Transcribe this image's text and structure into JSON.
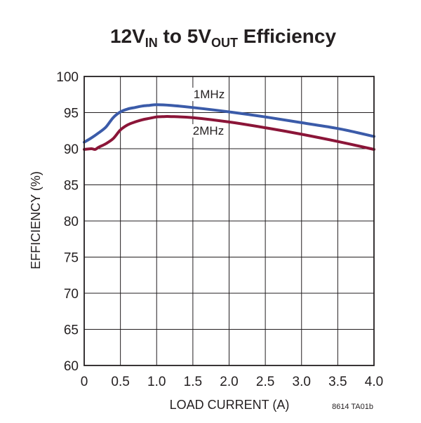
{
  "chart_data": {
    "type": "line",
    "title": {
      "prefix": "12V",
      "sub1": "IN",
      "middle": " to 5V",
      "sub2": "OUT",
      "suffix": " Efficiency"
    },
    "xlabel": "LOAD CURRENT (A)",
    "ylabel": "EFFICIENCY (%)",
    "xlim": [
      0,
      4.0
    ],
    "ylim": [
      60,
      100
    ],
    "xticks": [
      "0",
      "0.5",
      "1.0",
      "1.5",
      "2.0",
      "2.5",
      "3.0",
      "3.5",
      "4.0"
    ],
    "yticks": [
      "60",
      "65",
      "70",
      "75",
      "80",
      "85",
      "90",
      "95",
      "100"
    ],
    "grid": true,
    "figure_code": "8614 TA01b",
    "series": [
      {
        "name": "1MHz",
        "color": "#3b5ba9",
        "x": [
          0,
          0.1,
          0.2,
          0.3,
          0.4,
          0.5,
          0.6,
          0.7,
          0.8,
          0.9,
          1.0,
          1.2,
          1.5,
          2.0,
          2.5,
          3.0,
          3.5,
          4.0
        ],
        "y": [
          90.9,
          91.5,
          92.2,
          93.0,
          94.3,
          95.1,
          95.5,
          95.7,
          95.9,
          96.0,
          96.1,
          96.0,
          95.7,
          95.1,
          94.4,
          93.6,
          92.8,
          91.7
        ]
      },
      {
        "name": "2MHz",
        "color": "#8b1538",
        "x": [
          0,
          0.1,
          0.15,
          0.2,
          0.3,
          0.4,
          0.5,
          0.6,
          0.7,
          0.8,
          0.9,
          1.0,
          1.1,
          1.2,
          1.5,
          2.0,
          2.5,
          3.0,
          3.5,
          4.0
        ],
        "y": [
          89.9,
          90.0,
          89.9,
          90.2,
          90.7,
          91.4,
          92.6,
          93.3,
          93.7,
          94.0,
          94.2,
          94.4,
          94.45,
          94.45,
          94.3,
          93.7,
          92.9,
          92.0,
          91.0,
          89.9
        ]
      }
    ]
  }
}
